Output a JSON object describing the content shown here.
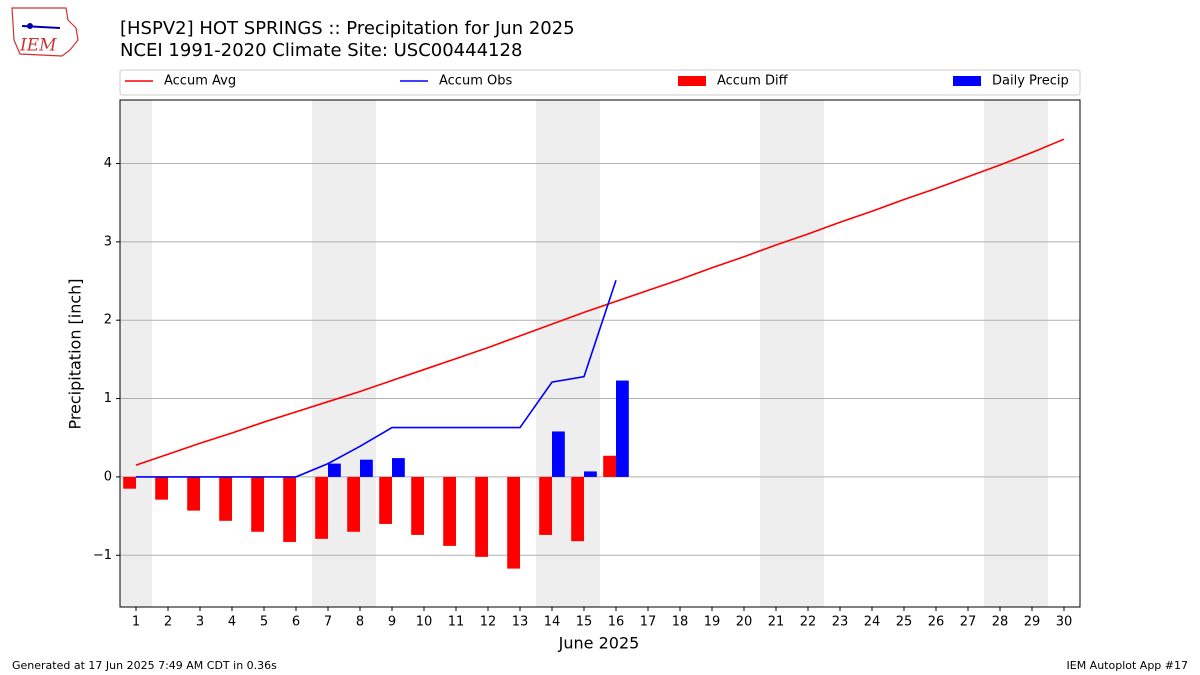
{
  "logo_text": "IEM",
  "chart_data": {
    "type": "combo",
    "title": "[HSPV2] HOT SPRINGS :: Precipitation for Jun 2025",
    "subtitle": "NCEI 1991-2020 Climate Site: USC00444128",
    "y_label": "Precipitation [inch]",
    "x_label": "June 2025",
    "footer_left": "Generated at 17 Jun 2025 7:49 AM CDT in 0.36s",
    "footer_right": "IEM Autoplot App #17",
    "x": [
      1,
      2,
      3,
      4,
      5,
      6,
      7,
      8,
      9,
      10,
      11,
      12,
      13,
      14,
      15,
      16,
      17,
      18,
      19,
      20,
      21,
      22,
      23,
      24,
      25,
      26,
      27,
      28,
      29,
      30
    ],
    "xlim": [
      0.5,
      30.5
    ],
    "xticks": [
      1,
      2,
      3,
      4,
      5,
      6,
      7,
      8,
      9,
      10,
      11,
      12,
      13,
      14,
      15,
      16,
      17,
      18,
      19,
      20,
      21,
      22,
      23,
      24,
      25,
      26,
      27,
      28,
      29,
      30
    ],
    "ylim": [
      -1.66,
      4.81
    ],
    "yticks": [
      {
        "value": -1,
        "label": "−1"
      },
      0,
      1,
      2,
      3,
      4
    ],
    "grid": true,
    "shaded_days": [
      1,
      7,
      8,
      14,
      15,
      21,
      22,
      28,
      29
    ],
    "shade_color": "#eeeeee",
    "legend": "top",
    "series": [
      {
        "name": "Accum Avg",
        "kind": "line",
        "color": "#ff0000",
        "values": [
          0.15,
          0.29,
          0.43,
          0.56,
          0.7,
          0.83,
          0.96,
          1.09,
          1.23,
          1.37,
          1.51,
          1.65,
          1.8,
          1.95,
          2.1,
          2.24,
          2.38,
          2.52,
          2.67,
          2.81,
          2.96,
          3.1,
          3.25,
          3.39,
          3.54,
          3.68,
          3.83,
          3.98,
          4.14,
          4.31
        ]
      },
      {
        "name": "Accum Obs",
        "kind": "line",
        "color": "#0000ff",
        "values": [
          0,
          0,
          0,
          0,
          0,
          0,
          0.17,
          0.39,
          0.63,
          0.63,
          0.63,
          0.63,
          0.63,
          1.21,
          1.28,
          2.51,
          null,
          null,
          null,
          null,
          null,
          null,
          null,
          null,
          null,
          null,
          null,
          null,
          null,
          null
        ]
      },
      {
        "name": "Accum Diff",
        "kind": "bar",
        "side": "left",
        "color": "#ff0000",
        "values": [
          -0.15,
          -0.29,
          -0.43,
          -0.56,
          -0.7,
          -0.83,
          -0.79,
          -0.7,
          -0.6,
          -0.74,
          -0.88,
          -1.02,
          -1.17,
          -0.74,
          -0.82,
          0.27,
          null,
          null,
          null,
          null,
          null,
          null,
          null,
          null,
          null,
          null,
          null,
          null,
          null,
          null
        ]
      },
      {
        "name": "Daily Precip",
        "kind": "bar",
        "side": "right",
        "color": "#0000ff",
        "values": [
          0,
          0,
          0,
          0,
          0,
          0,
          0.17,
          0.22,
          0.24,
          0,
          0,
          0,
          0,
          0.58,
          0.07,
          1.23,
          null,
          null,
          null,
          null,
          null,
          null,
          null,
          null,
          null,
          null,
          null,
          null,
          null,
          null
        ]
      }
    ]
  }
}
